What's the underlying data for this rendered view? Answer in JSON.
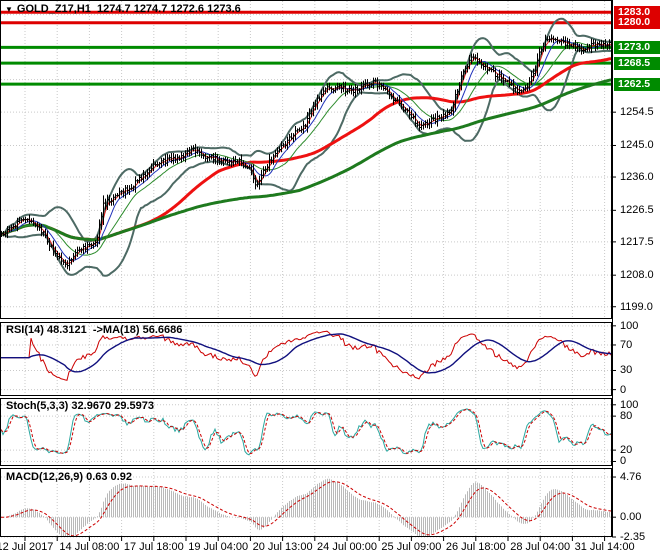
{
  "chart_data": {
    "type": "ohlc-bar-multi-panel",
    "title": "GOLD_Z17,H1  1274.7 1274.7 1272.6 1273.6",
    "marker": "▼",
    "symbol": "GOLD_Z17",
    "timeframe": "H1",
    "ohlc": {
      "open": 1274.7,
      "high": 1274.7,
      "low": 1272.6,
      "close": 1273.6
    },
    "main_panel": {
      "axis": {
        "top_price": 1286.5,
        "bottom_price": 1195.5,
        "ticks": [
          "1254.5",
          "1245.0",
          "1236.0",
          "1226.5",
          "1217.5",
          "1208.0",
          "1199.0"
        ]
      },
      "levels": [
        {
          "label": "1283.0",
          "price": 1283.0,
          "kind": "resistance",
          "color": "#dd0000"
        },
        {
          "label": "1280.0",
          "price": 1280.0,
          "kind": "resistance",
          "color": "#dd0000"
        },
        {
          "label": "1273.0",
          "price": 1273.0,
          "kind": "support",
          "color": "#008b00"
        },
        {
          "label": "1268.5",
          "price": 1268.5,
          "kind": "support",
          "color": "#008b00"
        },
        {
          "label": "1262.5",
          "price": 1262.5,
          "kind": "support",
          "color": "#008b00"
        }
      ],
      "bars": 306,
      "close_keyframes": [
        [
          0,
          1219.5
        ],
        [
          12,
          1222
        ],
        [
          25,
          1224
        ],
        [
          40,
          1221
        ],
        [
          55,
          1214
        ],
        [
          65,
          1210.5
        ],
        [
          78,
          1215
        ],
        [
          95,
          1217
        ],
        [
          99,
          1222
        ],
        [
          103,
          1228
        ],
        [
          115,
          1230.5
        ],
        [
          130,
          1233
        ],
        [
          145,
          1237
        ],
        [
          152,
          1239.5
        ],
        [
          165,
          1240.5
        ],
        [
          178,
          1241.5
        ],
        [
          192,
          1244
        ],
        [
          205,
          1241.5
        ],
        [
          222,
          1241
        ],
        [
          238,
          1240.5
        ],
        [
          250,
          1238
        ],
        [
          256,
          1233.5
        ],
        [
          262,
          1237
        ],
        [
          272,
          1242
        ],
        [
          285,
          1245.5
        ],
        [
          295,
          1248.5
        ],
        [
          305,
          1251
        ],
        [
          315,
          1257
        ],
        [
          325,
          1261
        ],
        [
          338,
          1261.5
        ],
        [
          352,
          1260.5
        ],
        [
          365,
          1262
        ],
        [
          374,
          1263
        ],
        [
          385,
          1260.5
        ],
        [
          398,
          1257
        ],
        [
          410,
          1253.5
        ],
        [
          420,
          1250.5
        ],
        [
          432,
          1252
        ],
        [
          445,
          1253.5
        ],
        [
          452,
          1256
        ],
        [
          458,
          1262
        ],
        [
          465,
          1267.5
        ],
        [
          472,
          1270
        ],
        [
          480,
          1268.5
        ],
        [
          492,
          1266
        ],
        [
          505,
          1263.5
        ],
        [
          518,
          1260.5
        ],
        [
          526,
          1261.5
        ],
        [
          533,
          1265
        ],
        [
          539,
          1271
        ],
        [
          546,
          1275.5
        ],
        [
          556,
          1275
        ],
        [
          568,
          1274
        ],
        [
          580,
          1272.5
        ],
        [
          592,
          1273.5
        ],
        [
          604,
          1274.2
        ],
        [
          612,
          1273.6
        ]
      ],
      "overlays": [
        "Bollinger Bands(20,2)",
        "MA fast red",
        "MA blue",
        "MA green thin",
        "MA(60) red thick",
        "MA(150) green thick"
      ]
    },
    "panels": {
      "rsi": {
        "label": "RSI(14) 48.3121  ->MA(18) 56.6686",
        "period": 14,
        "ma_period": 18,
        "value": 48.3121,
        "ma_value": 56.6686,
        "ticks": [
          "100",
          "70",
          "30",
          "0"
        ],
        "axis_max": 106,
        "axis_min": -10
      },
      "stoch": {
        "label": "Stoch(5,3,3) 32.9670 29.5973",
        "k_value": 32.967,
        "d_value": 29.5973,
        "ticks": [
          "100",
          "80",
          "20",
          "0"
        ],
        "axis_max": 112,
        "axis_min": -8
      },
      "macd": {
        "label": "MACD(12,26,9) 0.63 0.92",
        "macd_value": 0.63,
        "signal_value": 0.92,
        "ticks": [
          "4.76",
          "0.00",
          "-2.35"
        ],
        "axis_max": 5.83,
        "axis_min": -2.35
      }
    },
    "time_axis": {
      "labels": [
        "12 Jul 2017",
        "14 Jul 08:00",
        "17 Jul 18:00",
        "19 Jul 04:00",
        "20 Jul 13:00",
        "24 Jul 00:00",
        "25 Jul 09:00",
        "26 Jul 18:00",
        "28 Jul 04:00",
        "31 Jul 14:00"
      ]
    },
    "colors": {
      "background": "#ffffff",
      "grid": "#c9c9c9",
      "border": "#000000",
      "bar": "#000000",
      "bb_band": "#4d6a64",
      "ma_fast_red": "#dd2222",
      "ma_blue": "#2233bb",
      "ma_green_thin": "#2d8c2d",
      "ma_red_thick": "#ee1111",
      "ma_green_thick": "#1e7a1e",
      "resistance": "#dd0000",
      "support": "#008b00",
      "rsi_line": "#cc0000",
      "rsi_ma": "#10107e",
      "stoch_k": "#2aa8a0",
      "stoch_d": "#cc0000",
      "macd_hist": "#b9b9b9",
      "macd_signal": "#cc0000",
      "text": "#000000"
    }
  }
}
